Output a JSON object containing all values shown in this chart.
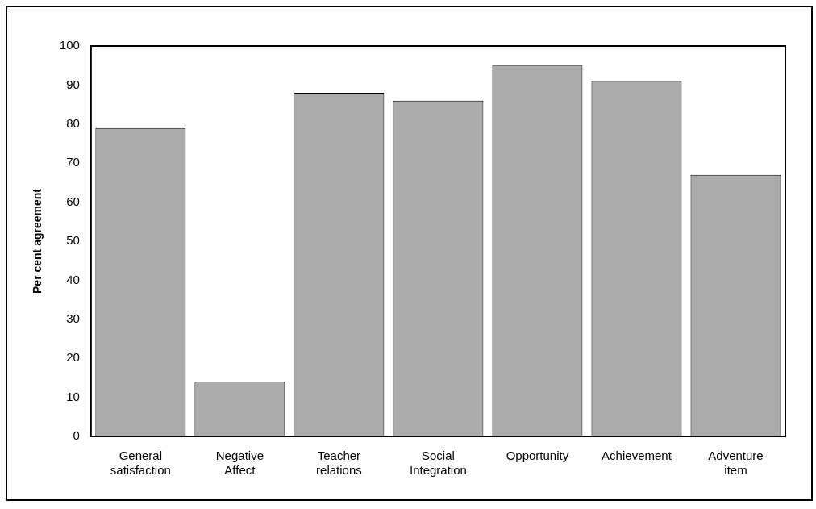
{
  "chart_data": {
    "type": "bar",
    "ylabel": "Per cent agreement",
    "categories": [
      "General satisfaction",
      "Negative Affect",
      "Teacher relations",
      "Social Integration",
      "Opportunity",
      "Achievement",
      "Adventure item"
    ],
    "values": [
      79,
      14,
      88,
      86,
      95,
      91,
      67
    ],
    "color": "#ababab",
    "ylim": [
      0,
      100
    ],
    "yticks": [
      0,
      10,
      20,
      30,
      40,
      50,
      60,
      70,
      80,
      90,
      100
    ],
    "grid": false
  }
}
